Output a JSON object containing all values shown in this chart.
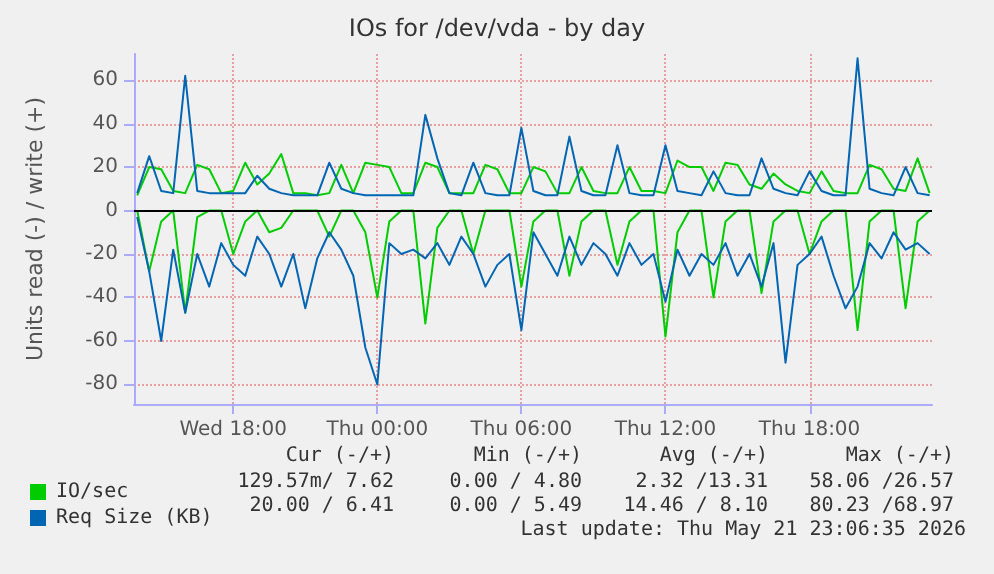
{
  "chart_data": {
    "type": "line",
    "title": "IOs for /dev/vda - by day",
    "ylabel": "Units read (-) / write (+)",
    "x": [
      "2026-05-20T14:00",
      "2026-05-20T14:30",
      "2026-05-20T15:00",
      "2026-05-20T15:30",
      "2026-05-20T16:00",
      "2026-05-20T16:30",
      "2026-05-20T17:00",
      "2026-05-20T17:30",
      "2026-05-20T18:00",
      "2026-05-20T18:30",
      "2026-05-20T19:00",
      "2026-05-20T19:30",
      "2026-05-20T20:00",
      "2026-05-20T20:30",
      "2026-05-20T21:00",
      "2026-05-20T21:30",
      "2026-05-20T22:00",
      "2026-05-20T22:30",
      "2026-05-20T23:00",
      "2026-05-20T23:30",
      "2026-05-21T00:00",
      "2026-05-21T00:30",
      "2026-05-21T01:00",
      "2026-05-21T01:30",
      "2026-05-21T02:00",
      "2026-05-21T02:30",
      "2026-05-21T03:00",
      "2026-05-21T03:30",
      "2026-05-21T04:00",
      "2026-05-21T04:30",
      "2026-05-21T05:00",
      "2026-05-21T05:30",
      "2026-05-21T06:00",
      "2026-05-21T06:30",
      "2026-05-21T07:00",
      "2026-05-21T07:30",
      "2026-05-21T08:00",
      "2026-05-21T08:30",
      "2026-05-21T09:00",
      "2026-05-21T09:30",
      "2026-05-21T10:00",
      "2026-05-21T10:30",
      "2026-05-21T11:00",
      "2026-05-21T11:30",
      "2026-05-21T12:00",
      "2026-05-21T12:30",
      "2026-05-21T13:00",
      "2026-05-21T13:30",
      "2026-05-21T14:00",
      "2026-05-21T14:30",
      "2026-05-21T15:00",
      "2026-05-21T15:30",
      "2026-05-21T16:00",
      "2026-05-21T16:30",
      "2026-05-21T17:00",
      "2026-05-21T17:30",
      "2026-05-21T18:00",
      "2026-05-21T18:30",
      "2026-05-21T19:00",
      "2026-05-21T19:30",
      "2026-05-21T20:00",
      "2026-05-21T20:30",
      "2026-05-21T21:00",
      "2026-05-21T21:30",
      "2026-05-21T22:00",
      "2026-05-21T22:30",
      "2026-05-21T23:00"
    ],
    "series": [
      {
        "name": null,
        "color": "#00cc00",
        "values": [
          0,
          -28,
          -5,
          0,
          -47,
          -3,
          0,
          0,
          -20,
          -5,
          0,
          -10,
          -8,
          0,
          0,
          0,
          -12,
          0,
          0,
          -10,
          -40,
          -5,
          0,
          0,
          -52,
          -8,
          0,
          0,
          -20,
          0,
          0,
          0,
          -35,
          -5,
          0,
          0,
          -30,
          -5,
          0,
          0,
          -25,
          -5,
          0,
          0,
          -58,
          -10,
          0,
          0,
          -40,
          -5,
          0,
          0,
          -38,
          -5,
          0,
          0,
          -20,
          -5,
          0,
          0,
          -55,
          -5,
          0,
          0,
          -45,
          -5,
          0
        ]
      },
      {
        "name": "IO/sec",
        "color": "#00cc00",
        "values": [
          7,
          20,
          19,
          9,
          8,
          21,
          19,
          8,
          9,
          22,
          12,
          17,
          26,
          8,
          8,
          7,
          8,
          21,
          8,
          22,
          21,
          20,
          8,
          8,
          22,
          20,
          8,
          8,
          8,
          21,
          19,
          8,
          8,
          20,
          18,
          8,
          8,
          20,
          9,
          8,
          8,
          20,
          9,
          9,
          8,
          23,
          20,
          20,
          9,
          22,
          21,
          12,
          10,
          17,
          12,
          9,
          8,
          18,
          9,
          8,
          8,
          21,
          19,
          10,
          9,
          24,
          8
        ]
      },
      {
        "name": null,
        "color": "#0066b3",
        "values": [
          -3,
          -28,
          -60,
          -18,
          -47,
          -20,
          -35,
          -15,
          -25,
          -30,
          -12,
          -20,
          -35,
          -20,
          -45,
          -22,
          -10,
          -18,
          -30,
          -63,
          -80,
          -15,
          -20,
          -18,
          -22,
          -15,
          -25,
          -12,
          -20,
          -35,
          -25,
          -20,
          -55,
          -10,
          -20,
          -30,
          -12,
          -25,
          -15,
          -20,
          -30,
          -15,
          -25,
          -20,
          -42,
          -18,
          -30,
          -20,
          -25,
          -15,
          -30,
          -20,
          -35,
          -15,
          -70,
          -25,
          -20,
          -12,
          -30,
          -45,
          -35,
          -15,
          -22,
          -10,
          -18,
          -15,
          -20
        ]
      },
      {
        "name": "Req Size (KB)",
        "color": "#0066b3",
        "values": [
          8,
          25,
          9,
          8,
          62,
          9,
          8,
          8,
          8,
          8,
          16,
          10,
          8,
          7,
          7,
          7,
          22,
          10,
          8,
          7,
          7,
          7,
          7,
          7,
          44,
          24,
          8,
          7,
          22,
          8,
          7,
          7,
          38,
          9,
          7,
          7,
          34,
          9,
          7,
          7,
          30,
          8,
          7,
          7,
          30,
          9,
          8,
          7,
          18,
          8,
          7,
          7,
          24,
          10,
          8,
          7,
          18,
          9,
          7,
          7,
          70,
          10,
          8,
          7,
          20,
          8,
          7
        ]
      }
    ],
    "xlim": [
      "2026-05-20T13:52",
      "2026-05-21T23:06"
    ],
    "xticks": [
      {
        "value": "2026-05-20T18:00",
        "label": "Wed 18:00"
      },
      {
        "value": "2026-05-21T00:00",
        "label": "Thu 00:00"
      },
      {
        "value": "2026-05-21T06:00",
        "label": "Thu 06:00"
      },
      {
        "value": "2026-05-21T12:00",
        "label": "Thu 12:00"
      },
      {
        "value": "2026-05-21T18:00",
        "label": "Thu 18:00"
      }
    ],
    "ylim": [
      -89,
      72
    ],
    "yticks": [
      -80,
      -60,
      -40,
      -20,
      0,
      20,
      40,
      60
    ],
    "ref_lines": [
      {
        "axis": "y",
        "value": 0,
        "color": "#000000"
      }
    ],
    "grid": true,
    "legend": "bottom left",
    "marker": "none",
    "line_style": "solid",
    "annotations": [
      "Cur (-/+)",
      "Min (-/+)",
      "Avg (-/+)",
      "Max (-/+)",
      "129.57m/ 7.62",
      "0.00 / 4.80",
      "2.32 /13.31",
      "58.06 /26.57",
      "20.00 / 6.41",
      "0.00 / 5.49",
      "14.46 / 8.10",
      "80.23 /68.97",
      "Last update: Thu May 21 23:06:35 2026"
    ]
  }
}
